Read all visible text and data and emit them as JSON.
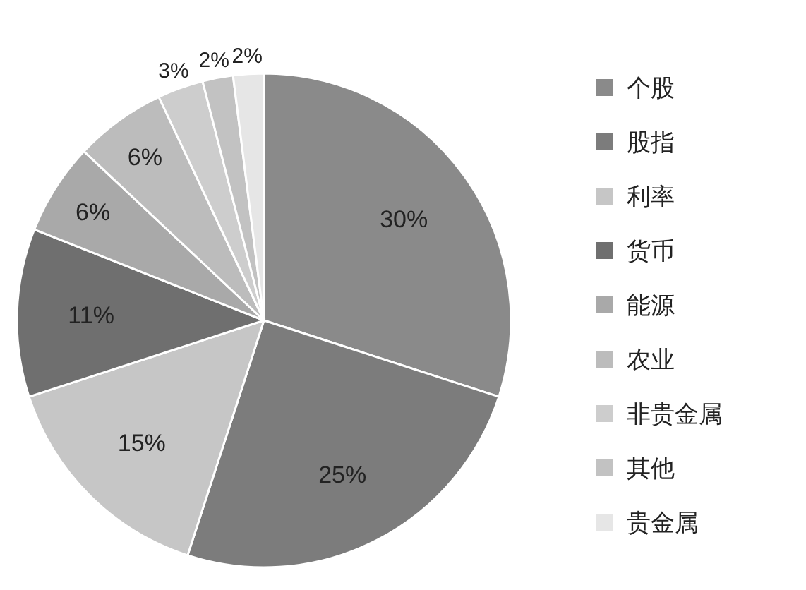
{
  "chart_data": {
    "type": "pie",
    "categories": [
      "个股",
      "股指",
      "利率",
      "货币",
      "能源",
      "农业",
      "非贵金属",
      "其他",
      "贵金属"
    ],
    "values": [
      30,
      25,
      15,
      11,
      6,
      6,
      3,
      2,
      2
    ],
    "value_labels": [
      "30%",
      "25%",
      "15%",
      "11%",
      "6%",
      "6%",
      "3%",
      "2%",
      "2%"
    ],
    "colors": [
      "#8a8a8a",
      "#7c7c7c",
      "#c6c6c6",
      "#6f6f6f",
      "#a9a9a9",
      "#bcbcbc",
      "#cdcdcd",
      "#c2c2c2",
      "#e6e6e6"
    ],
    "legend": "right"
  }
}
